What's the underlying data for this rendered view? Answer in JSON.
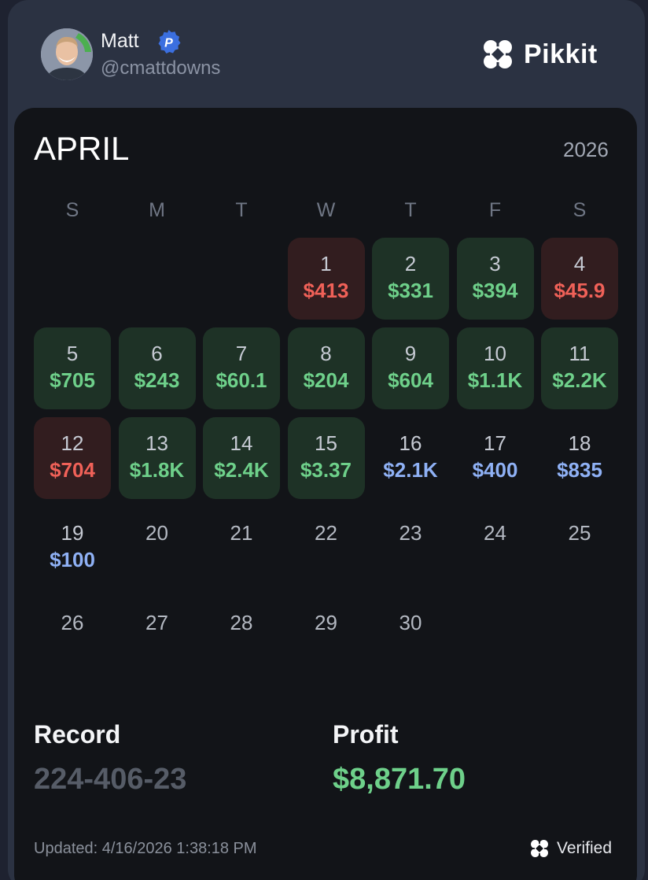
{
  "user": {
    "name": "Matt",
    "handle": "@cmattdowns",
    "badge_letter": "P"
  },
  "brand": {
    "name": "Pikkit",
    "logo_icon": "clover-icon"
  },
  "calendar": {
    "month": "APRIL",
    "year": "2026",
    "weekdays": [
      "S",
      "M",
      "T",
      "W",
      "T",
      "F",
      "S"
    ],
    "days": [
      {
        "day": "1",
        "amount": "$413",
        "status": "loss"
      },
      {
        "day": "2",
        "amount": "$331",
        "status": "win"
      },
      {
        "day": "3",
        "amount": "$394",
        "status": "win"
      },
      {
        "day": "4",
        "amount": "$45.9",
        "status": "loss"
      },
      {
        "day": "5",
        "amount": "$705",
        "status": "win"
      },
      {
        "day": "6",
        "amount": "$243",
        "status": "win"
      },
      {
        "day": "7",
        "amount": "$60.1",
        "status": "win"
      },
      {
        "day": "8",
        "amount": "$204",
        "status": "win"
      },
      {
        "day": "9",
        "amount": "$604",
        "status": "win"
      },
      {
        "day": "10",
        "amount": "$1.1K",
        "status": "win"
      },
      {
        "day": "11",
        "amount": "$2.2K",
        "status": "win"
      },
      {
        "day": "12",
        "amount": "$704",
        "status": "loss"
      },
      {
        "day": "13",
        "amount": "$1.8K",
        "status": "win"
      },
      {
        "day": "14",
        "amount": "$2.4K",
        "status": "win"
      },
      {
        "day": "15",
        "amount": "$3.37",
        "status": "win"
      },
      {
        "day": "16",
        "amount": "$2.1K",
        "status": "pending"
      },
      {
        "day": "17",
        "amount": "$400",
        "status": "pending"
      },
      {
        "day": "18",
        "amount": "$835",
        "status": "pending"
      },
      {
        "day": "19",
        "amount": "$100",
        "status": "pending"
      },
      {
        "day": "20",
        "amount": "",
        "status": "empty"
      },
      {
        "day": "21",
        "amount": "",
        "status": "empty"
      },
      {
        "day": "22",
        "amount": "",
        "status": "empty"
      },
      {
        "day": "23",
        "amount": "",
        "status": "empty"
      },
      {
        "day": "24",
        "amount": "",
        "status": "empty"
      },
      {
        "day": "25",
        "amount": "",
        "status": "empty"
      },
      {
        "day": "26",
        "amount": "",
        "status": "empty"
      },
      {
        "day": "27",
        "amount": "",
        "status": "empty"
      },
      {
        "day": "28",
        "amount": "",
        "status": "empty"
      },
      {
        "day": "29",
        "amount": "",
        "status": "empty"
      },
      {
        "day": "30",
        "amount": "",
        "status": "empty"
      }
    ]
  },
  "summary": {
    "record_label": "Record",
    "record_value": "224-406-23",
    "profit_label": "Profit",
    "profit_value": "$8,871.70"
  },
  "footer": {
    "updated": "Updated: 4/16/2026 1:38:18 PM",
    "verified_label": "Verified"
  },
  "colors": {
    "win_bg": "#1e3226",
    "win_text": "#6ed08a",
    "loss_bg": "#321d1f",
    "loss_text": "#f06158",
    "pending_text": "#8fb1f5"
  }
}
